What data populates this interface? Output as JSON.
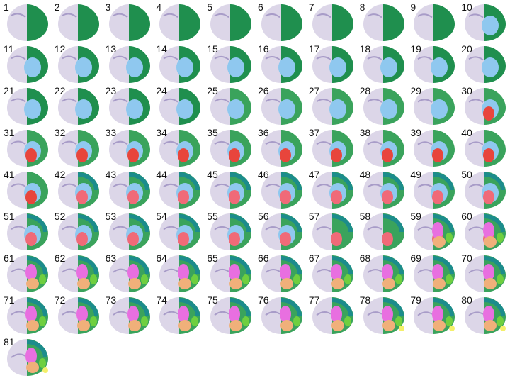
{
  "section_numbers": [
    "1",
    "2",
    "3",
    "4",
    "5",
    "6",
    "7",
    "8",
    "9",
    "10",
    "11",
    "12",
    "13",
    "14",
    "15",
    "16",
    "17",
    "18",
    "19",
    "20",
    "21",
    "22",
    "23",
    "24",
    "25",
    "26",
    "27",
    "28",
    "29",
    "30",
    "31",
    "32",
    "33",
    "34",
    "35",
    "36",
    "37",
    "38",
    "39",
    "40",
    "41",
    "42",
    "43",
    "44",
    "45",
    "46",
    "47",
    "48",
    "49",
    "50",
    "51",
    "52",
    "53",
    "54",
    "55",
    "56",
    "57",
    "58",
    "59",
    "60",
    "61",
    "62",
    "63",
    "64",
    "65",
    "66",
    "67",
    "68",
    "69",
    "70",
    "71",
    "72",
    "73",
    "74",
    "75",
    "76",
    "77",
    "78",
    "79",
    "80",
    "81"
  ],
  "region_colors": {
    "histology": "#d8d2e6",
    "histology_dark": "#a89cc8",
    "cortex_dark_green": "#1f8f4e",
    "cortex_green": "#3aa35c",
    "teal": "#1c8c8c",
    "light_blue": "#8fc8ef",
    "red": "#e8453c",
    "pink_red": "#f06a78",
    "magenta": "#e86fe0",
    "orange": "#f0b07a",
    "lime_green": "#6fcf3f",
    "yellow": "#f4ef6a"
  }
}
